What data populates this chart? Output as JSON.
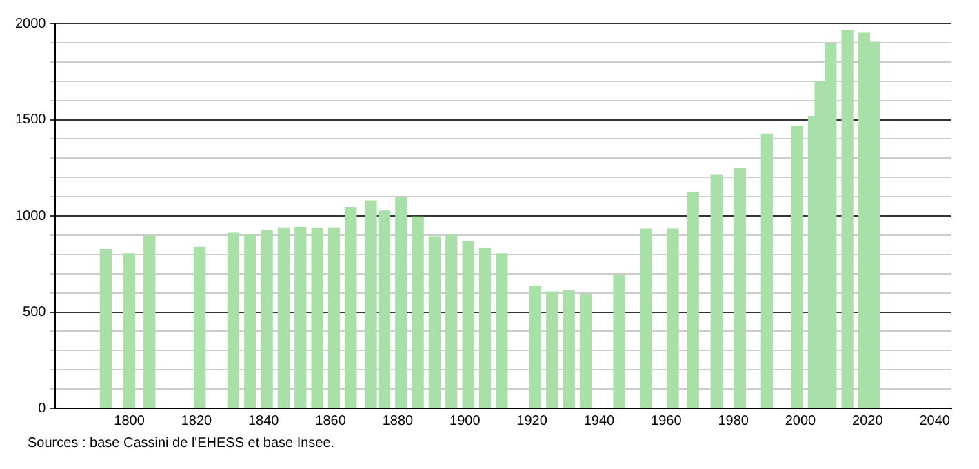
{
  "chart_data": {
    "type": "bar",
    "x": [
      1793,
      1800,
      1806,
      1821,
      1831,
      1836,
      1841,
      1846,
      1851,
      1856,
      1861,
      1866,
      1872,
      1876,
      1881,
      1886,
      1891,
      1896,
      1901,
      1906,
      1911,
      1921,
      1926,
      1931,
      1936,
      1946,
      1954,
      1962,
      1968,
      1975,
      1982,
      1990,
      1999,
      2004,
      2006,
      2009,
      2014,
      2019,
      2022
    ],
    "values": [
      826,
      803,
      895,
      837,
      910,
      901,
      922,
      938,
      940,
      936,
      938,
      1044,
      1078,
      1025,
      1094,
      995,
      892,
      899,
      867,
      830,
      803,
      632,
      605,
      611,
      593,
      690,
      931,
      931,
      1122,
      1211,
      1246,
      1425,
      1467,
      1517,
      1697,
      1894,
      1963,
      1949,
      1903
    ],
    "color": "#a8e0a8",
    "xlim": [
      1778,
      2045
    ],
    "xticks": [
      1800,
      1820,
      1840,
      1860,
      1880,
      1900,
      1920,
      1940,
      1960,
      1980,
      2000,
      2020,
      2040
    ],
    "ylim": [
      0,
      2000
    ],
    "yticks": [
      0,
      {
        "value": 100,
        "label": null
      },
      {
        "value": 200,
        "label": null
      },
      {
        "value": 300,
        "label": null
      },
      {
        "value": 400,
        "label": null
      },
      500,
      {
        "value": 600,
        "label": null
      },
      {
        "value": 700,
        "label": null
      },
      {
        "value": 800,
        "label": null
      },
      {
        "value": 900,
        "label": null
      },
      1000,
      {
        "value": 1100,
        "label": null
      },
      {
        "value": 1200,
        "label": null
      },
      {
        "value": 1300,
        "label": null
      },
      {
        "value": 1400,
        "label": null
      },
      1500,
      {
        "value": 1600,
        "label": null
      },
      {
        "value": 1700,
        "label": null
      },
      {
        "value": 1800,
        "label": null
      },
      {
        "value": 1900,
        "label": null
      },
      2000
    ],
    "grid": "y",
    "legend": false,
    "annotations": [
      "Sources : base Cassini de l'EHESS et base Insee."
    ]
  }
}
